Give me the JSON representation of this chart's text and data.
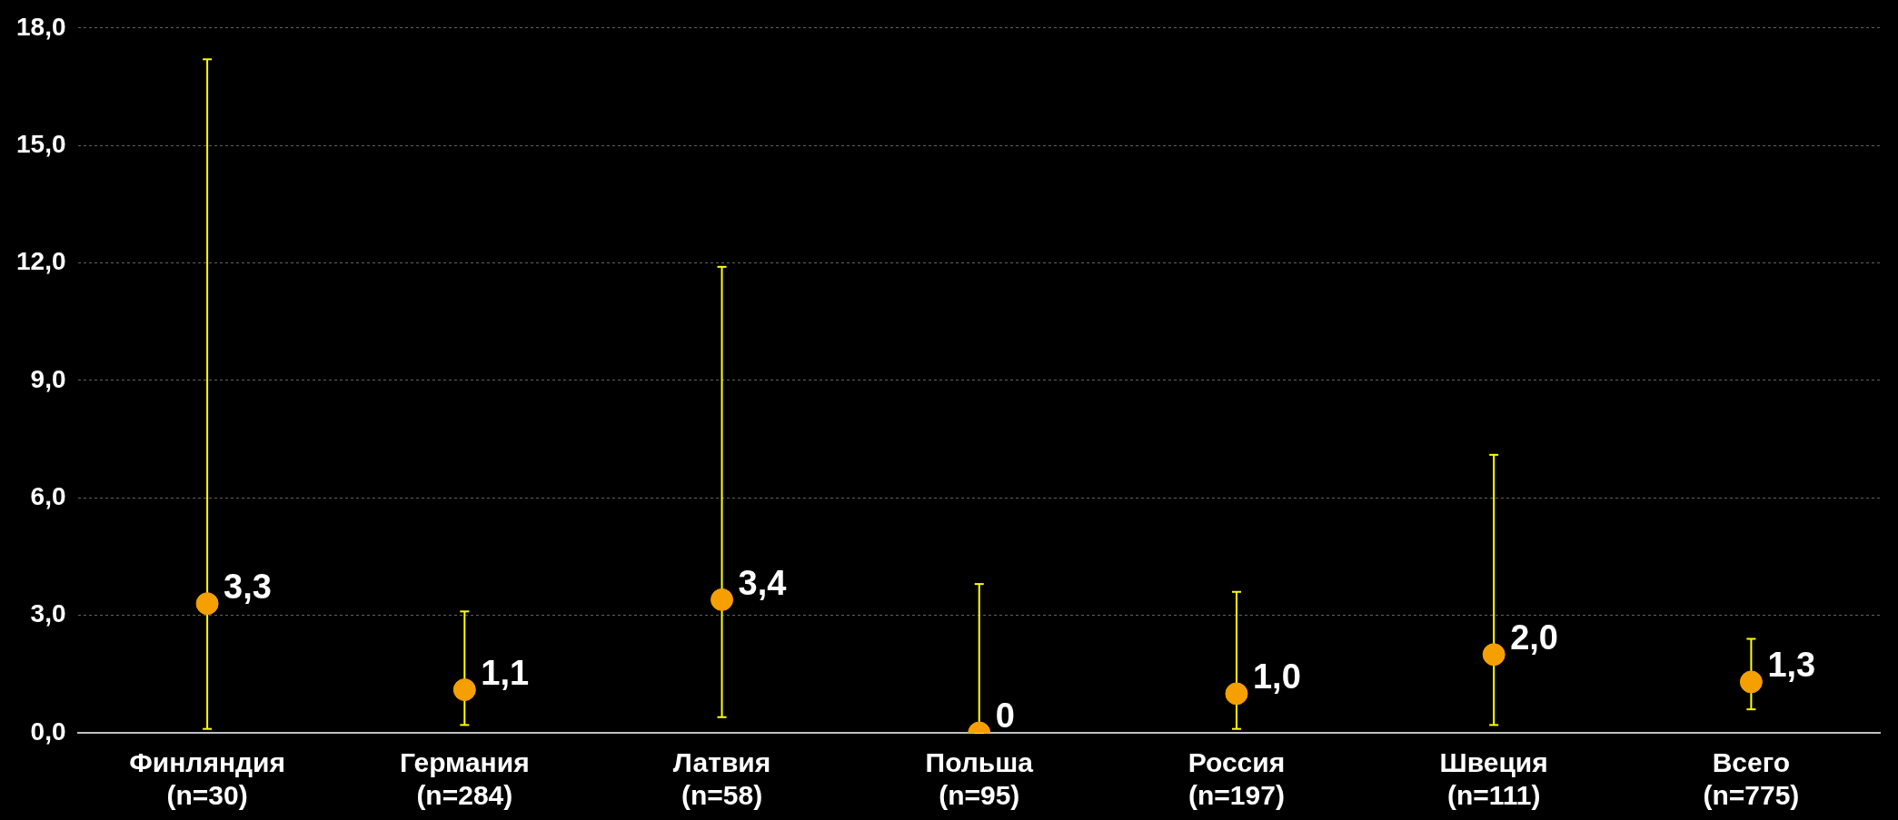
{
  "chart_data": {
    "type": "scatter",
    "categories": [
      "Финляндия\n(n=30)",
      "Германия\n(n=284)",
      "Латвия\n(n=58)",
      "Польша\n(n=95)",
      "Россия\n(n=197)",
      "Швеция\n(n=111)",
      "Всего\n(n=775)"
    ],
    "series": [
      {
        "color": "#f5a000",
        "values": [
          3.3,
          1.1,
          3.4,
          0,
          1.0,
          2.0,
          1.3
        ],
        "errors": [
          [
            0.1,
            17.2
          ],
          [
            0.2,
            3.1
          ],
          [
            0.4,
            11.9
          ],
          [
            0,
            3.8
          ],
          [
            0.1,
            3.6
          ],
          [
            0.2,
            7.1
          ],
          [
            0.6,
            2.4
          ]
        ],
        "value_labels": [
          "3,3",
          "1,1",
          "3,4",
          "0",
          "1,0",
          "2,0",
          "1,3"
        ]
      }
    ],
    "ylim": [
      0,
      18
    ],
    "yticks": [
      {
        "value": 0,
        "label": "0,0"
      },
      {
        "value": 3,
        "label": "3,0"
      },
      {
        "value": 6,
        "label": "6,0"
      },
      {
        "value": 9,
        "label": "9,0"
      },
      {
        "value": 12,
        "label": "12,0"
      },
      {
        "value": 15,
        "label": "15,0"
      },
      {
        "value": 18,
        "label": "18,0"
      }
    ],
    "grid": "y",
    "legend": false,
    "marker": "circle"
  }
}
